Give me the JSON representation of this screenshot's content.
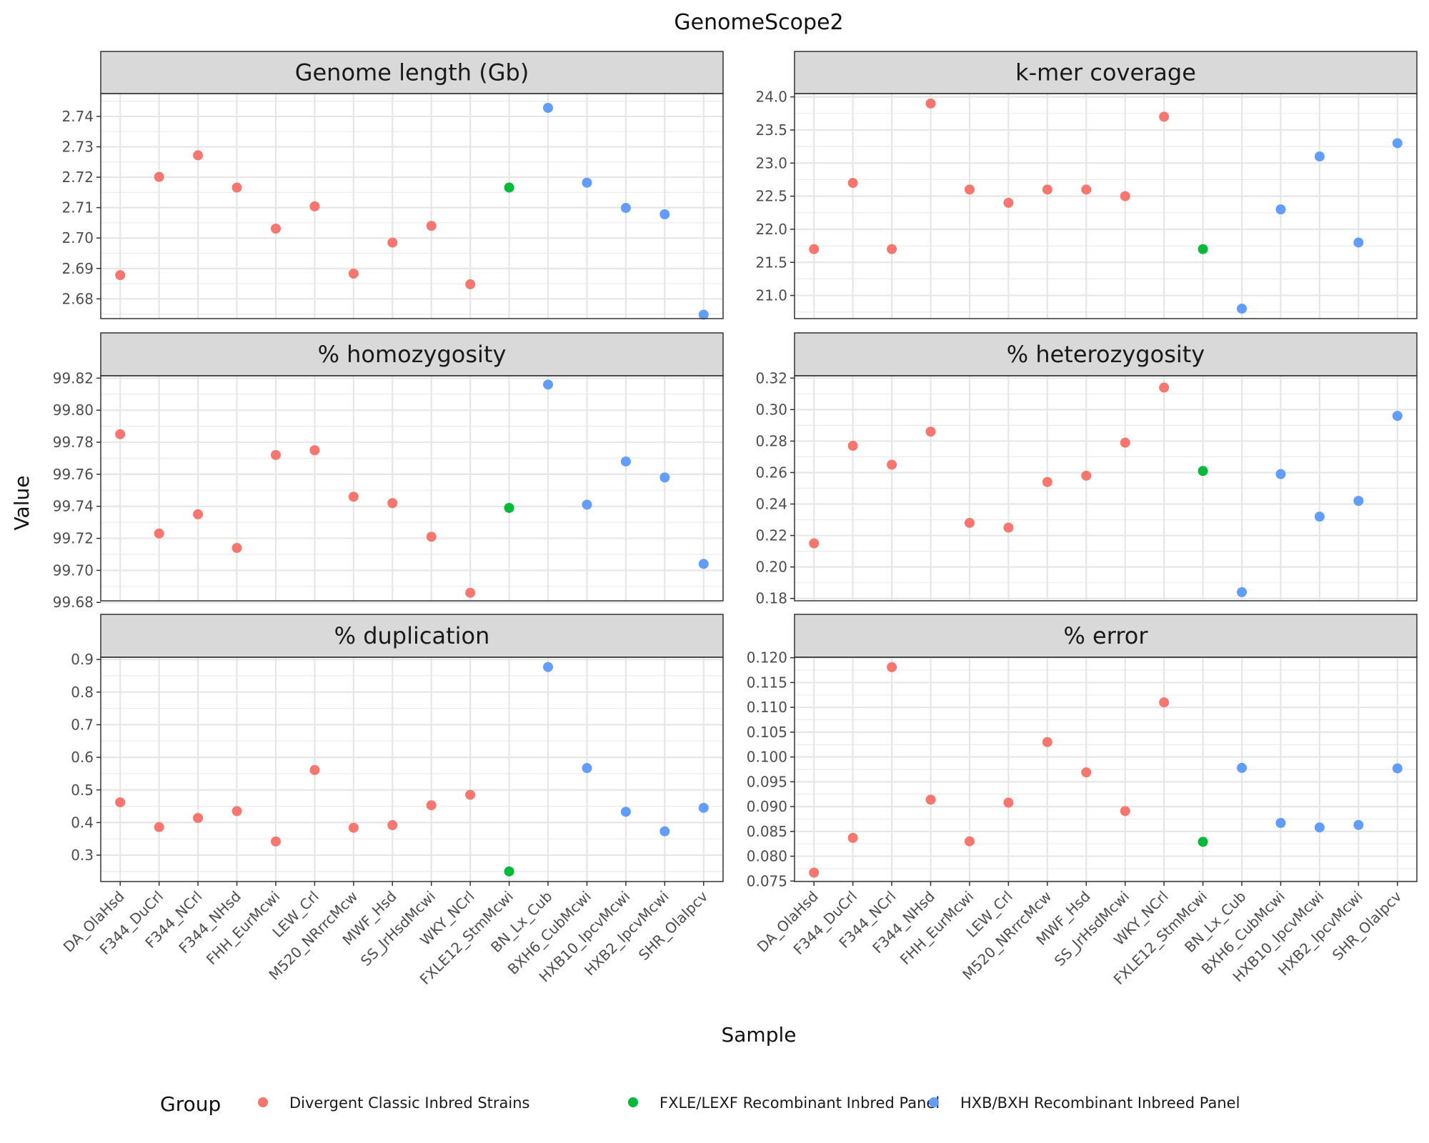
{
  "chart_data": {
    "type": "scatter",
    "title": "GenomeScope2",
    "xlabel": "Sample",
    "ylabel": "Value",
    "samples": [
      "DA_OlaHsd",
      "F344_DuCrl",
      "F344_NCrl",
      "F344_NHsd",
      "FHH_EurMcwi",
      "LEW_Crl",
      "M520_NRrrcMcw",
      "MWF_Hsd",
      "SS_JrHsdMcwi",
      "WKY_NCrl",
      "FXLE12_StmMcwi",
      "BN_Lx_Cub",
      "BXH6_CubMcwi",
      "HXB10_IpcvMcwi",
      "HXB2_IpcvMcwi",
      "SHR_OlaIpcv"
    ],
    "sample_groups": [
      0,
      0,
      0,
      0,
      0,
      0,
      0,
      0,
      0,
      0,
      1,
      2,
      2,
      2,
      2,
      2
    ],
    "legend": {
      "title": "Group",
      "position": "bottom",
      "entries": [
        {
          "label": "Divergent Classic Inbred Strains",
          "color": "#F8766D"
        },
        {
          "label": "FXLE/LEXF Recombinant Inbred Panel",
          "color": "#00BA38"
        },
        {
          "label": "HXB/BXH Recombinant Inbreed Panel",
          "color": "#619CFF"
        }
      ]
    },
    "grid": true,
    "panels": [
      {
        "title": "Genome length (Gb)",
        "ylim": [
          2.6735,
          2.7475
        ],
        "yticks": [
          "2.68",
          "2.69",
          "2.70",
          "2.71",
          "2.72",
          "2.73",
          "2.74"
        ],
        "values": [
          2.6878,
          2.7201,
          2.7272,
          2.7166,
          2.7031,
          2.7104,
          2.6883,
          2.6985,
          2.704,
          2.6848,
          2.7166,
          2.7428,
          2.7182,
          2.7099,
          2.7078,
          2.6748
        ]
      },
      {
        "title": "k-mer coverage",
        "ylim": [
          20.65,
          24.05
        ],
        "yticks": [
          "21.0",
          "21.5",
          "22.0",
          "22.5",
          "23.0",
          "23.5",
          "24.0"
        ],
        "values": [
          21.7,
          22.7,
          21.7,
          23.9,
          22.6,
          22.4,
          22.6,
          22.6,
          22.5,
          23.7,
          21.7,
          20.8,
          22.3,
          23.1,
          21.8,
          23.3
        ]
      },
      {
        "title": "% homozygosity",
        "ylim": [
          99.681,
          99.8215
        ],
        "yticks": [
          "99.68",
          "99.70",
          "99.72",
          "99.74",
          "99.76",
          "99.78",
          "99.80",
          "99.82"
        ],
        "values": [
          99.785,
          99.723,
          99.735,
          99.714,
          99.772,
          99.775,
          99.746,
          99.742,
          99.721,
          99.686,
          99.739,
          99.816,
          99.741,
          99.768,
          99.758,
          99.704
        ]
      },
      {
        "title": "% heterozygosity",
        "ylim": [
          0.1785,
          0.3215
        ],
        "yticks": [
          "0.18",
          "0.20",
          "0.22",
          "0.24",
          "0.26",
          "0.28",
          "0.30",
          "0.32"
        ],
        "values": [
          0.215,
          0.277,
          0.265,
          0.286,
          0.228,
          0.225,
          0.254,
          0.258,
          0.279,
          0.314,
          0.261,
          0.184,
          0.259,
          0.232,
          0.242,
          0.296
        ]
      },
      {
        "title": "% duplication",
        "ylim": [
          0.219,
          0.907
        ],
        "yticks": [
          "0.3",
          "0.4",
          "0.5",
          "0.6",
          "0.7",
          "0.8",
          "0.9"
        ],
        "values": [
          0.462,
          0.386,
          0.414,
          0.435,
          0.342,
          0.561,
          0.384,
          0.392,
          0.453,
          0.485,
          0.25,
          0.877,
          0.567,
          0.433,
          0.373,
          0.445
        ]
      },
      {
        "title": "% error",
        "ylim": [
          0.0749,
          0.1201
        ],
        "yticks": [
          "0.075",
          "0.080",
          "0.085",
          "0.090",
          "0.095",
          "0.100",
          "0.105",
          "0.110",
          "0.115",
          "0.120"
        ],
        "values": [
          0.0767,
          0.0837,
          0.1181,
          0.0914,
          0.083,
          0.0908,
          0.103,
          0.0969,
          0.0891,
          0.111,
          0.0829,
          0.0978,
          0.0867,
          0.0858,
          0.0863,
          0.0977
        ]
      }
    ]
  }
}
